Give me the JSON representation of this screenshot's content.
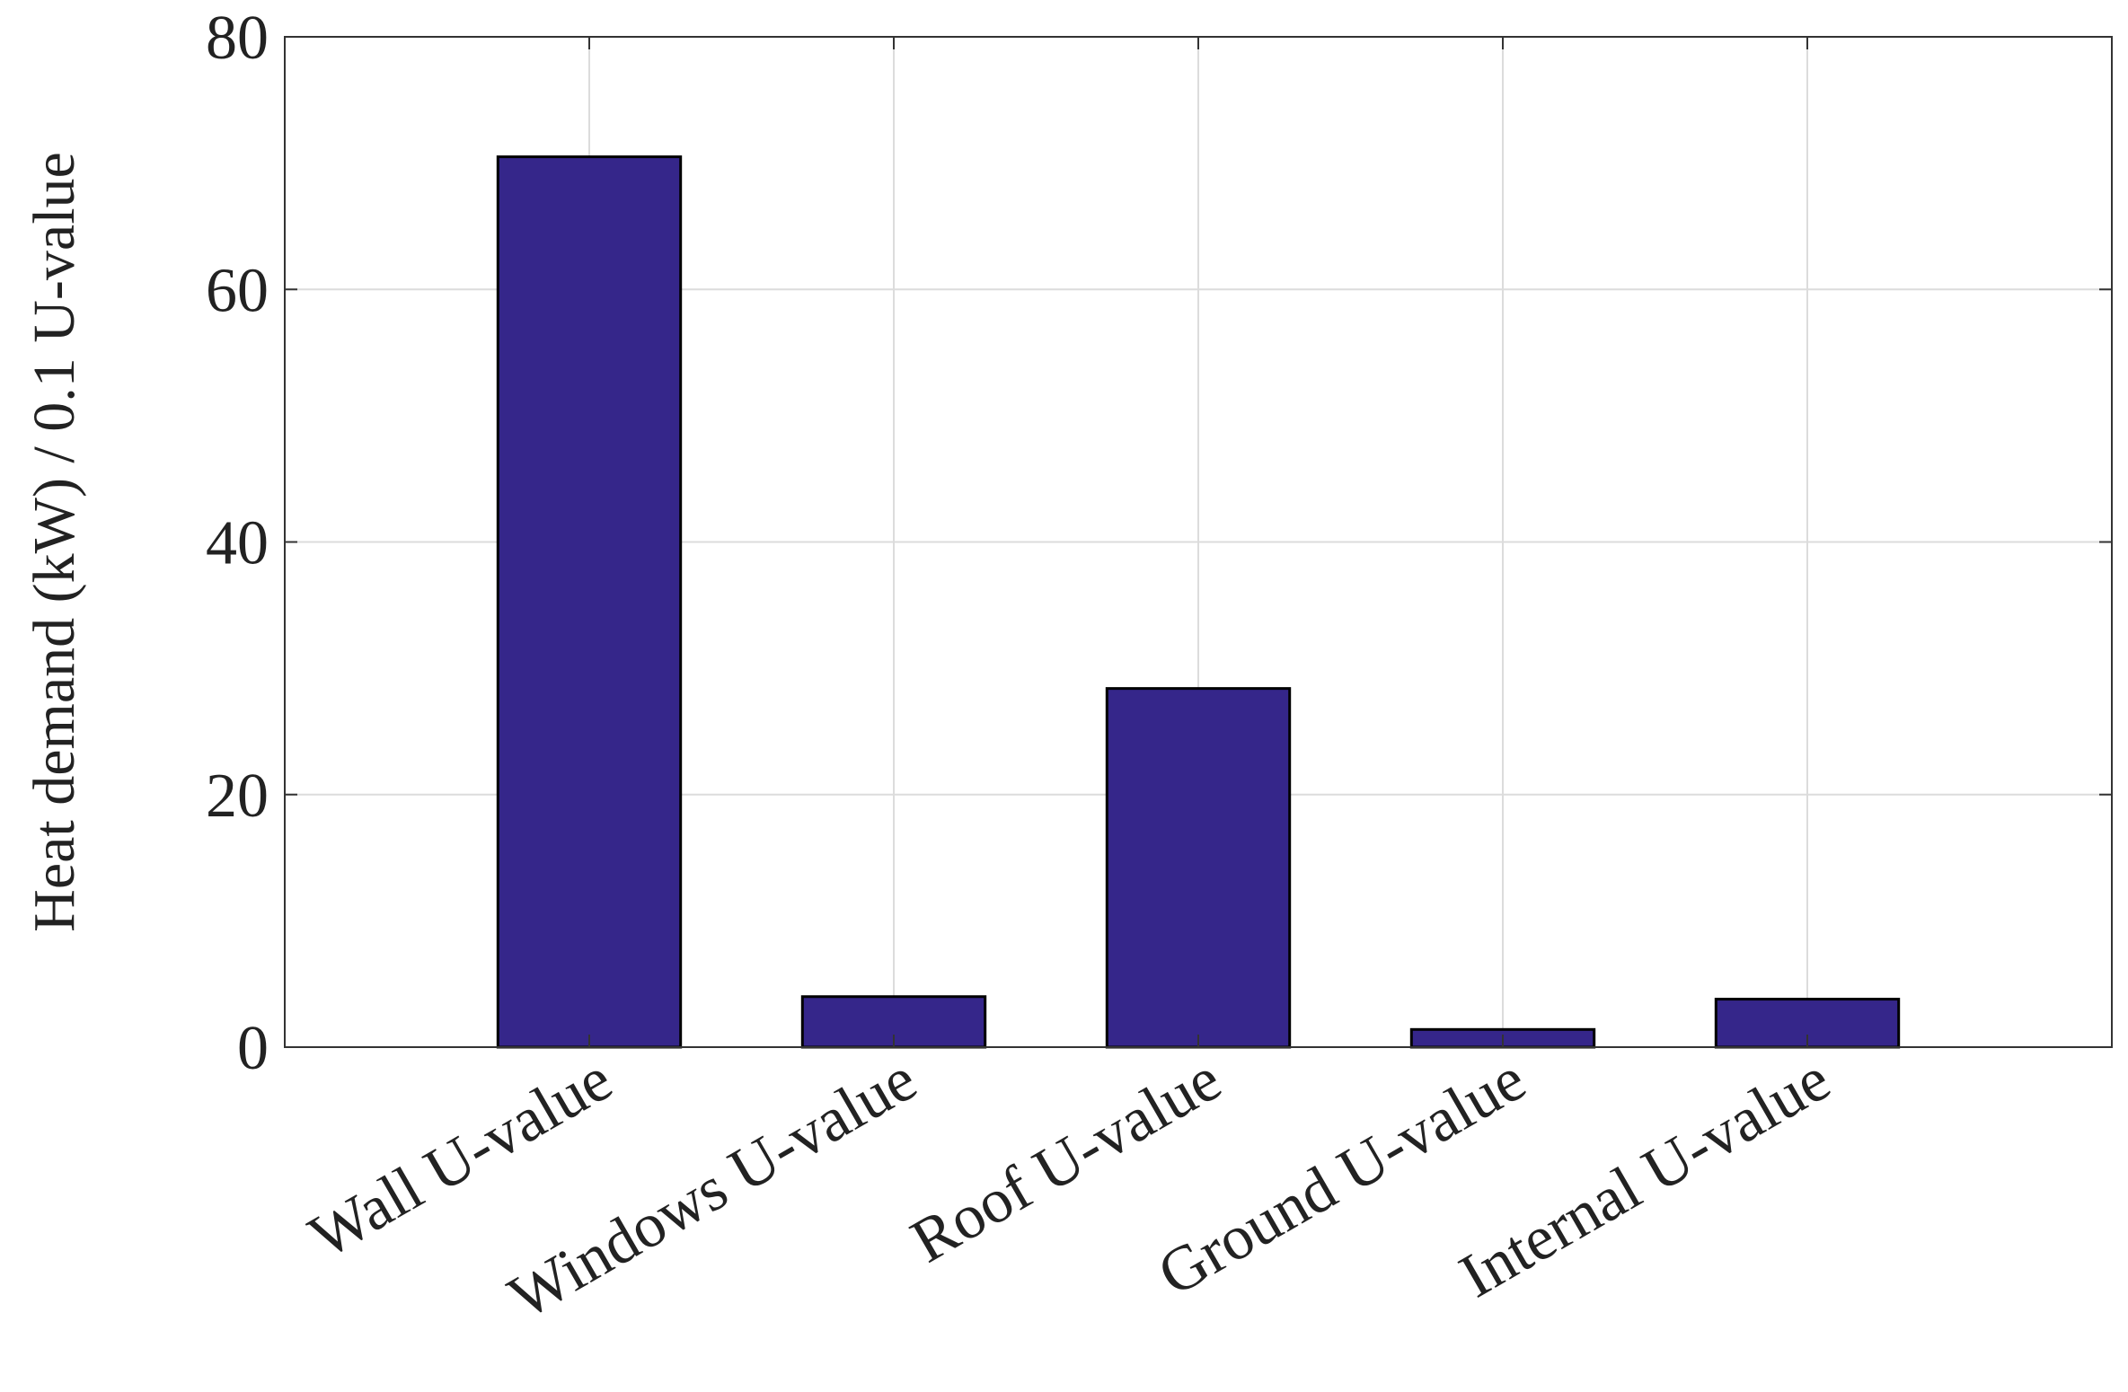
{
  "chart_data": {
    "type": "bar",
    "title": "",
    "xlabel": "",
    "ylabel": "Heat demand (kW) / 0.1 U-value",
    "categories": [
      "Wall U-value",
      "Windows U-value",
      "Roof U-value",
      "Ground U-value",
      "Internal U-value"
    ],
    "values": [
      70.5,
      4.0,
      28.4,
      1.4,
      3.8
    ],
    "ylim": [
      0,
      80
    ],
    "yticks": [
      0,
      20,
      40,
      60,
      80
    ],
    "grid": true,
    "bar_color": "#35268a",
    "bar_edge_color": "#000000"
  }
}
